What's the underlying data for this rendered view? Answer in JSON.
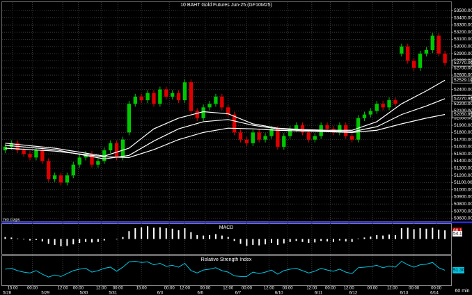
{
  "chart_data": [
    {
      "type": "candlestick",
      "title": "10 BAHT  Gold Futures  Jun-25 (GF10M25)",
      "open": [
        51550,
        51600,
        51650,
        51550,
        51500,
        51450,
        51550,
        51400,
        51150,
        51200,
        51100,
        51200,
        51350,
        51450,
        51500,
        51350,
        51400,
        51550,
        51650,
        51450,
        51800,
        52200,
        52300,
        52250,
        52350,
        52200,
        52400,
        52300,
        52350,
        52250,
        52500,
        52100,
        52000,
        52150,
        52200,
        52300,
        52150,
        52050,
        51800,
        51700,
        51650,
        51800,
        51700,
        51750,
        51850,
        51600,
        51750,
        51850,
        51900,
        51800,
        51700,
        51750,
        51900,
        51850,
        51800,
        51900,
        51750,
        51700,
        52000,
        52050,
        52100,
        52200,
        52150,
        52250,
        52900,
        53000,
        52800,
        52700,
        52900,
        52950,
        53150,
        52900
      ],
      "high": [
        51640,
        51690,
        51690,
        51590,
        51540,
        51590,
        51590,
        51440,
        51240,
        51240,
        51240,
        51390,
        51490,
        51540,
        51540,
        51440,
        51590,
        51690,
        51690,
        51740,
        52240,
        52340,
        52340,
        52390,
        52390,
        52440,
        52440,
        52390,
        52390,
        52540,
        52540,
        52140,
        52190,
        52240,
        52340,
        52340,
        52190,
        52090,
        51840,
        51740,
        51840,
        51840,
        51790,
        51890,
        51890,
        51790,
        51890,
        51940,
        51940,
        51840,
        51790,
        51940,
        51940,
        51890,
        51940,
        51940,
        51790,
        52040,
        52090,
        52140,
        52240,
        52240,
        52290,
        52290,
        53040,
        53040,
        52840,
        52940,
        52990,
        53190,
        53190,
        52940
      ],
      "low": [
        51510,
        51560,
        51510,
        51460,
        51410,
        51410,
        51360,
        51110,
        51110,
        51060,
        51060,
        51160,
        51310,
        51410,
        51310,
        51310,
        51360,
        51510,
        51410,
        51410,
        51760,
        52160,
        52210,
        52210,
        52160,
        52160,
        52260,
        52260,
        52210,
        52210,
        52060,
        51960,
        51960,
        52110,
        52160,
        52110,
        52010,
        51760,
        51660,
        51610,
        51610,
        51660,
        51660,
        51710,
        51560,
        51560,
        51710,
        51810,
        51760,
        51660,
        51660,
        51710,
        51810,
        51760,
        51760,
        51710,
        51660,
        51660,
        51960,
        52010,
        52060,
        52110,
        52110,
        52160,
        52860,
        52760,
        52660,
        52660,
        52860,
        52910,
        52860,
        52730
      ],
      "close": [
        51600,
        51650,
        51550,
        51500,
        51450,
        51550,
        51400,
        51150,
        51200,
        51100,
        51200,
        51350,
        51450,
        51500,
        51350,
        51400,
        51550,
        51650,
        51450,
        51700,
        52200,
        52300,
        52250,
        52350,
        52200,
        52400,
        52300,
        52350,
        52250,
        52500,
        52100,
        52000,
        52150,
        52200,
        52300,
        52150,
        52050,
        51800,
        51700,
        51650,
        51800,
        51700,
        51750,
        51850,
        51600,
        51750,
        51850,
        51900,
        51800,
        51700,
        51750,
        51900,
        51850,
        51800,
        51900,
        51750,
        51700,
        52000,
        52050,
        52100,
        52200,
        52150,
        52250,
        52200,
        53000,
        52800,
        52700,
        52900,
        52950,
        53150,
        52900,
        52770
      ],
      "up_color": "#00c800",
      "down_color": "#e00000",
      "xlim": [
        -0.5,
        72
      ],
      "xticks": [
        {
          "value": 1.2,
          "label": "15:00"
        },
        {
          "value": 4.4,
          "label": "00:00"
        },
        {
          "value": 9.3,
          "label": "12:00"
        },
        {
          "value": 11.8,
          "label": "00:00"
        },
        {
          "value": 15.5,
          "label": "12:00"
        },
        {
          "value": 18.2,
          "label": "00:00"
        },
        {
          "value": 22,
          "label": "15:00"
        },
        {
          "value": 26.5,
          "label": "00:00"
        },
        {
          "value": 29,
          "label": "12:00"
        },
        {
          "value": 32.3,
          "label": "00:00"
        },
        {
          "value": 36,
          "label": "12:00"
        },
        {
          "value": 39,
          "label": "00:00"
        },
        {
          "value": 42.6,
          "label": "12:00"
        },
        {
          "value": 45.6,
          "label": "00:00"
        },
        {
          "value": 49.5,
          "label": "12:00"
        },
        {
          "value": 52.5,
          "label": "00:00"
        },
        {
          "value": 55.5,
          "label": "12:00"
        },
        {
          "value": 59.3,
          "label": "00:00"
        },
        {
          "value": 62.5,
          "label": "12:00"
        },
        {
          "value": 66,
          "label": "00:00"
        },
        {
          "value": 69.6,
          "label": "00:00"
        }
      ],
      "date_ticks": [
        {
          "value": 0.3,
          "label": "5/28"
        },
        {
          "value": 6.5,
          "label": "5/29"
        },
        {
          "value": 12.7,
          "label": "5/30"
        },
        {
          "value": 17.4,
          "label": "5/31"
        },
        {
          "value": 25,
          "label": "6/3"
        },
        {
          "value": 31.5,
          "label": "6/6"
        },
        {
          "value": 37.6,
          "label": "6/7"
        },
        {
          "value": 44.2,
          "label": "6/10"
        },
        {
          "value": 50.6,
          "label": "6/11"
        },
        {
          "value": 56.2,
          "label": "6/12"
        },
        {
          "value": 64.4,
          "label": "6/13"
        },
        {
          "value": 69.3,
          "label": "6/14"
        }
      ],
      "ylim": [
        50560,
        53620
      ],
      "yticks": [
        {
          "value": 50600,
          "label": "50600.00"
        },
        {
          "value": 50700,
          "label": "50700.00"
        },
        {
          "value": 50800,
          "label": "50800.00"
        },
        {
          "value": 50900,
          "label": "50900.00"
        },
        {
          "value": 51000,
          "label": "51000.00"
        },
        {
          "value": 51100,
          "label": "51100.00"
        },
        {
          "value": 51200,
          "label": "51200.00"
        },
        {
          "value": 51300,
          "label": "51300.00"
        },
        {
          "value": 51400,
          "label": "51400.00"
        },
        {
          "value": 51500,
          "label": "51500.00"
        },
        {
          "value": 51600,
          "label": "51600.00"
        },
        {
          "value": 51700,
          "label": "51700.00"
        },
        {
          "value": 51800,
          "label": "51800.00"
        },
        {
          "value": 51900,
          "label": "51900.00"
        },
        {
          "value": 52000,
          "label": "52000.00"
        },
        {
          "value": 52100,
          "label": "52100.00"
        },
        {
          "value": 52200,
          "label": "52200.00"
        },
        {
          "value": 52300,
          "label": "52300.00"
        },
        {
          "value": 52400,
          "label": "52400.00"
        },
        {
          "value": 52500,
          "label": "52500.00"
        },
        {
          "value": 52600,
          "label": "52600.00"
        },
        {
          "value": 52700,
          "label": "52700.00"
        },
        {
          "value": 52800,
          "label": "52800.00"
        },
        {
          "value": 52900,
          "label": "52900.00"
        },
        {
          "value": 53000,
          "label": "53000.00"
        },
        {
          "value": 53100,
          "label": "53100.00"
        },
        {
          "value": 53200,
          "label": "53200.00"
        },
        {
          "value": 53300,
          "label": "53300.00"
        },
        {
          "value": 53400,
          "label": "53400.00"
        },
        {
          "value": 53500,
          "label": "53500.00"
        }
      ],
      "grid": true,
      "moving_averages": {
        "x": [
          0,
          8,
          16,
          20,
          24,
          28,
          32,
          36,
          40,
          44,
          48,
          52,
          56,
          60,
          64,
          68,
          71
        ],
        "series": [
          {
            "color": "#ffffff",
            "values": [
              51650,
              51580,
              51470,
              51580,
              51850,
              52000,
              52090,
              52060,
              51920,
              51860,
              51840,
              51830,
              51830,
              51950,
              52200,
              52380,
              52529
            ]
          },
          {
            "color": "#ffffff",
            "values": [
              51620,
              51560,
              51430,
              51480,
              51680,
              51850,
              51950,
              51980,
              51900,
              51850,
              51830,
              51820,
              51810,
              51880,
              52050,
              52170,
              52271
            ]
          },
          {
            "color": "#ffffff",
            "values": [
              51580,
              51540,
              51460,
              51450,
              51560,
              51700,
              51800,
              51860,
              51850,
              51830,
              51820,
              51810,
              51800,
              51830,
              51920,
              52000,
              52051
            ]
          }
        ]
      },
      "price_labels": [
        {
          "value": 52770,
          "label": "52770.00"
        },
        {
          "value": 52529.1,
          "label": "52529.10"
        },
        {
          "value": 52270.95,
          "label": "52270.95"
        },
        {
          "value": 52050.95,
          "label": "52050.95"
        }
      ],
      "note": "No Gaps",
      "interval": "60  min"
    },
    {
      "type": "bar",
      "title": "MACD",
      "color": "#ffffff",
      "values": [
        20,
        15,
        5,
        -5,
        -15,
        -10,
        -25,
        -50,
        -60,
        -75,
        -70,
        -55,
        -40,
        -30,
        -35,
        -30,
        -15,
        0,
        -5,
        20,
        80,
        110,
        120,
        130,
        115,
        120,
        110,
        105,
        90,
        110,
        70,
        40,
        35,
        40,
        50,
        35,
        20,
        -20,
        -50,
        -70,
        -60,
        -65,
        -55,
        -40,
        -60,
        -45,
        -30,
        -20,
        -30,
        -40,
        -35,
        -20,
        -25,
        -30,
        -15,
        -25,
        -30,
        5,
        15,
        25,
        40,
        35,
        45,
        40,
        110,
        115,
        100,
        110,
        105,
        115,
        95,
        88.1
      ],
      "ylim": [
        -160,
        160
      ],
      "markers": [
        {
          "value": 88.1,
          "color": "#c00000"
        },
        {
          "value": 54.1,
          "color": "#ffffff"
        }
      ]
    },
    {
      "type": "line",
      "title": "Relative Strength Index",
      "color": "#00c8e6",
      "values": [
        55,
        58,
        50,
        45,
        42,
        50,
        38,
        28,
        35,
        30,
        40,
        50,
        55,
        58,
        45,
        50,
        58,
        62,
        48,
        62,
        80,
        82,
        78,
        80,
        70,
        75,
        65,
        68,
        62,
        75,
        50,
        42,
        52,
        55,
        60,
        50,
        45,
        32,
        30,
        30,
        45,
        40,
        45,
        52,
        38,
        50,
        55,
        58,
        50,
        42,
        48,
        58,
        52,
        48,
        55,
        45,
        40,
        60,
        62,
        64,
        68,
        60,
        66,
        62,
        82,
        70,
        62,
        70,
        72,
        78,
        60,
        51.3
      ],
      "ylim": [
        0,
        100
      ],
      "last_label": {
        "value": 51.3,
        "label": "51.30"
      }
    }
  ]
}
